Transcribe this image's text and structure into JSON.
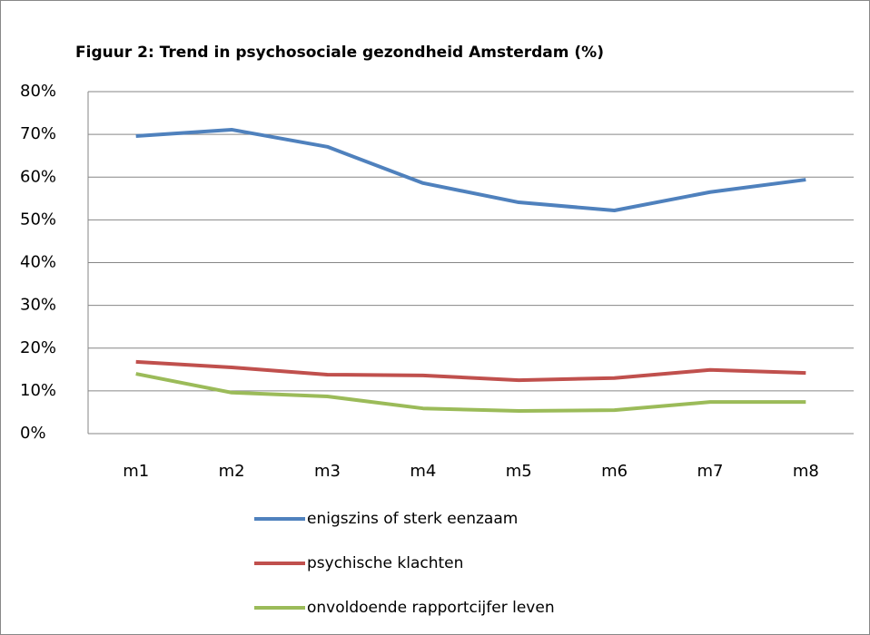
{
  "chart_data": {
    "type": "line",
    "title": "Figuur 2: Trend in psychosociale gezondheid Amsterdam (%)",
    "categories": [
      "m1",
      "m2",
      "m3",
      "m4",
      "m5",
      "m6",
      "m7",
      "m8"
    ],
    "series": [
      {
        "name": "enigszins of sterk eenzaam",
        "color": "#4f81bd",
        "values": [
          69.6,
          71.1,
          67.1,
          58.6,
          54.1,
          52.2,
          56.5,
          59.4
        ]
      },
      {
        "name": "psychische klachten",
        "color": "#c0504d",
        "values": [
          16.8,
          15.5,
          13.8,
          13.6,
          12.5,
          13.0,
          14.9,
          14.2
        ]
      },
      {
        "name": "onvoldoende rapportcijfer leven",
        "color": "#9bbb59",
        "values": [
          14.0,
          9.6,
          8.7,
          5.9,
          5.3,
          5.5,
          7.4,
          7.4
        ]
      }
    ],
    "ylim": [
      0,
      80
    ],
    "yticks": [
      {
        "value": 0,
        "label": "0%"
      },
      {
        "value": 10,
        "label": "10%"
      },
      {
        "value": 20,
        "label": "20%"
      },
      {
        "value": 30,
        "label": "30%"
      },
      {
        "value": 40,
        "label": "40%"
      },
      {
        "value": 50,
        "label": "50%"
      },
      {
        "value": 60,
        "label": "60%"
      },
      {
        "value": 70,
        "label": "70%"
      },
      {
        "value": 80,
        "label": "80%"
      }
    ],
    "grid": true,
    "legend": "bottom"
  }
}
